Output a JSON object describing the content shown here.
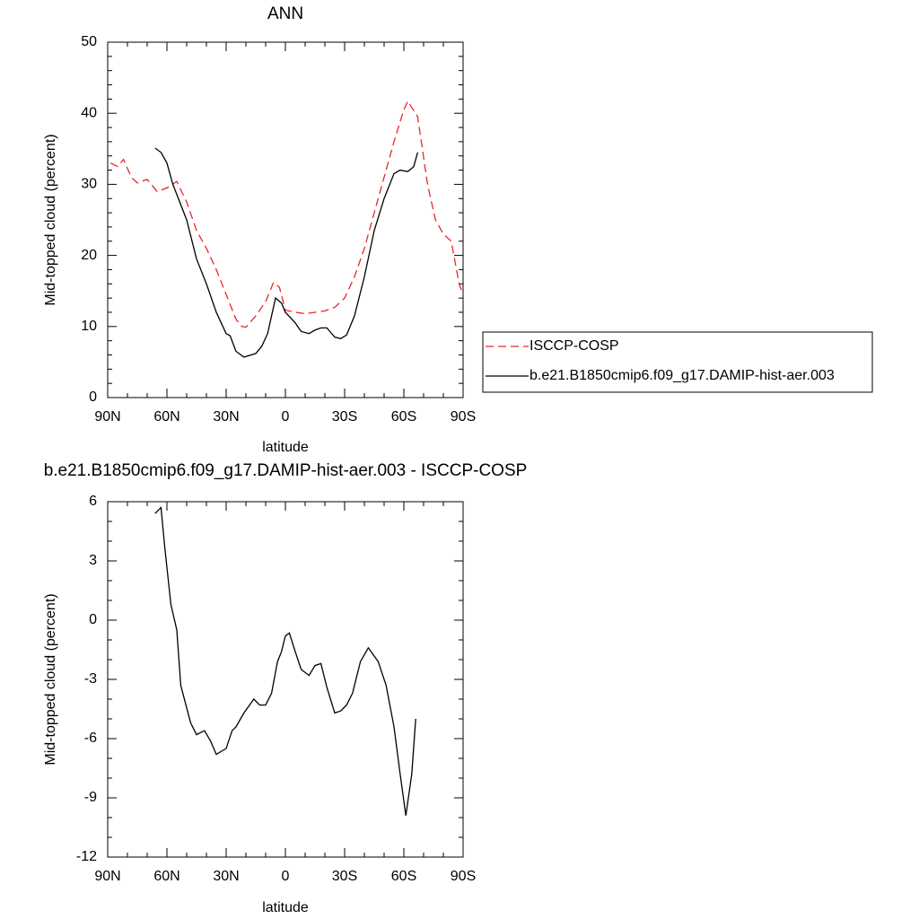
{
  "chart_data": [
    {
      "type": "line",
      "title": "ANN",
      "xlabel": "latitude",
      "ylabel": "Mid-topped cloud (percent)",
      "xlim": [
        90,
        -90
      ],
      "xticks": [
        {
          "value": 90,
          "label": "90N"
        },
        {
          "value": 60,
          "label": "60N"
        },
        {
          "value": 30,
          "label": "30N"
        },
        0,
        {
          "value": -30,
          "label": "30S"
        },
        {
          "value": -60,
          "label": "60S"
        },
        {
          "value": -90,
          "label": "90S"
        }
      ],
      "ylim": [
        0,
        50
      ],
      "yticks": [
        0,
        10,
        20,
        30,
        40,
        50
      ],
      "legend": "outside-right",
      "series": [
        {
          "name": "ISCCP-COSP",
          "color": "#e8262a",
          "linestyle": "dashed",
          "x": [
            88.5,
            85,
            82,
            78,
            75,
            70,
            65,
            60,
            55,
            50,
            45,
            40,
            35,
            30,
            25,
            22,
            20,
            15,
            10,
            6,
            3,
            0,
            -5,
            -10,
            -15,
            -20,
            -25,
            -30,
            -35,
            -40,
            -45,
            -50,
            -55,
            -60,
            -62,
            -67,
            -72,
            -76,
            -80,
            -84,
            -88,
            -90
          ],
          "values": [
            33.0,
            32.5,
            33.5,
            31,
            30.2,
            30.7,
            29,
            29.5,
            30.4,
            27.5,
            23.5,
            21,
            18,
            14.5,
            11,
            10,
            9.9,
            11.5,
            13.5,
            16.2,
            15.5,
            12.3,
            12,
            11.8,
            12,
            12.2,
            12.7,
            14,
            17,
            21,
            26,
            31,
            36,
            40.5,
            41.7,
            39.5,
            30,
            25,
            23,
            22,
            16,
            14.5
          ]
        },
        {
          "name": "b.e21.B1850cmip6.f09_g17.DAMIP-hist-aer.003",
          "color": "#000000",
          "linestyle": "solid",
          "x": [
            66,
            63,
            60,
            57,
            50,
            45,
            40,
            35,
            30,
            28,
            25,
            21,
            15,
            12,
            9,
            5,
            2,
            0,
            -5,
            -8,
            -12,
            -15,
            -18,
            -21,
            -25,
            -28,
            -31,
            -35,
            -40,
            -45,
            -50,
            -55,
            -58,
            -62,
            -65,
            -67
          ],
          "values": [
            35.1,
            34.5,
            33,
            30,
            25,
            19.5,
            16,
            12,
            9,
            8.7,
            6.5,
            5.7,
            6.2,
            7.2,
            9,
            14,
            13.3,
            12,
            10.5,
            9.3,
            9,
            9.5,
            9.8,
            9.8,
            8.5,
            8.3,
            8.8,
            11.5,
            17,
            23.5,
            28,
            31.5,
            32,
            31.8,
            32.5,
            34.5
          ]
        }
      ]
    },
    {
      "type": "line",
      "title": "b.e21.B1850cmip6.f09_g17.DAMIP-hist-aer.003 - ISCCP-COSP",
      "xlabel": "latitude",
      "ylabel": "Mid-topped cloud (percent)",
      "xlim": [
        90,
        -90
      ],
      "xticks": [
        {
          "value": 90,
          "label": "90N"
        },
        {
          "value": 60,
          "label": "60N"
        },
        {
          "value": 30,
          "label": "30N"
        },
        0,
        {
          "value": -30,
          "label": "30S"
        },
        {
          "value": -60,
          "label": "60S"
        },
        {
          "value": -90,
          "label": "90S"
        }
      ],
      "ylim": [
        -12,
        6
      ],
      "yticks": [
        -12,
        -9,
        -6,
        -3,
        0,
        3,
        6
      ],
      "series": [
        {
          "color": "#000000",
          "linestyle": "solid",
          "x": [
            66,
            63,
            61,
            58,
            55,
            53,
            48,
            45,
            41,
            38,
            35,
            30,
            27,
            25,
            21,
            16,
            13,
            10,
            7,
            4,
            2,
            0,
            -2,
            -5,
            -8,
            -12,
            -15,
            -18,
            -21,
            -25,
            -28,
            -31,
            -34,
            -38,
            -42,
            -47,
            -51,
            -55,
            -58,
            -61,
            -64,
            -66
          ],
          "values": [
            5.4,
            5.7,
            3.6,
            0.8,
            -0.5,
            -3.3,
            -5.2,
            -5.8,
            -5.6,
            -6.1,
            -6.8,
            -6.5,
            -5.6,
            -5.4,
            -4.7,
            -4,
            -4.3,
            -4.3,
            -3.7,
            -2.1,
            -1.6,
            -0.8,
            -0.65,
            -1.6,
            -2.5,
            -2.8,
            -2.3,
            -2.2,
            -3.4,
            -4.7,
            -4.6,
            -4.3,
            -3.7,
            -2.1,
            -1.4,
            -2.1,
            -3.3,
            -5.4,
            -7.7,
            -9.9,
            -7.8,
            -5.0
          ]
        }
      ]
    }
  ]
}
